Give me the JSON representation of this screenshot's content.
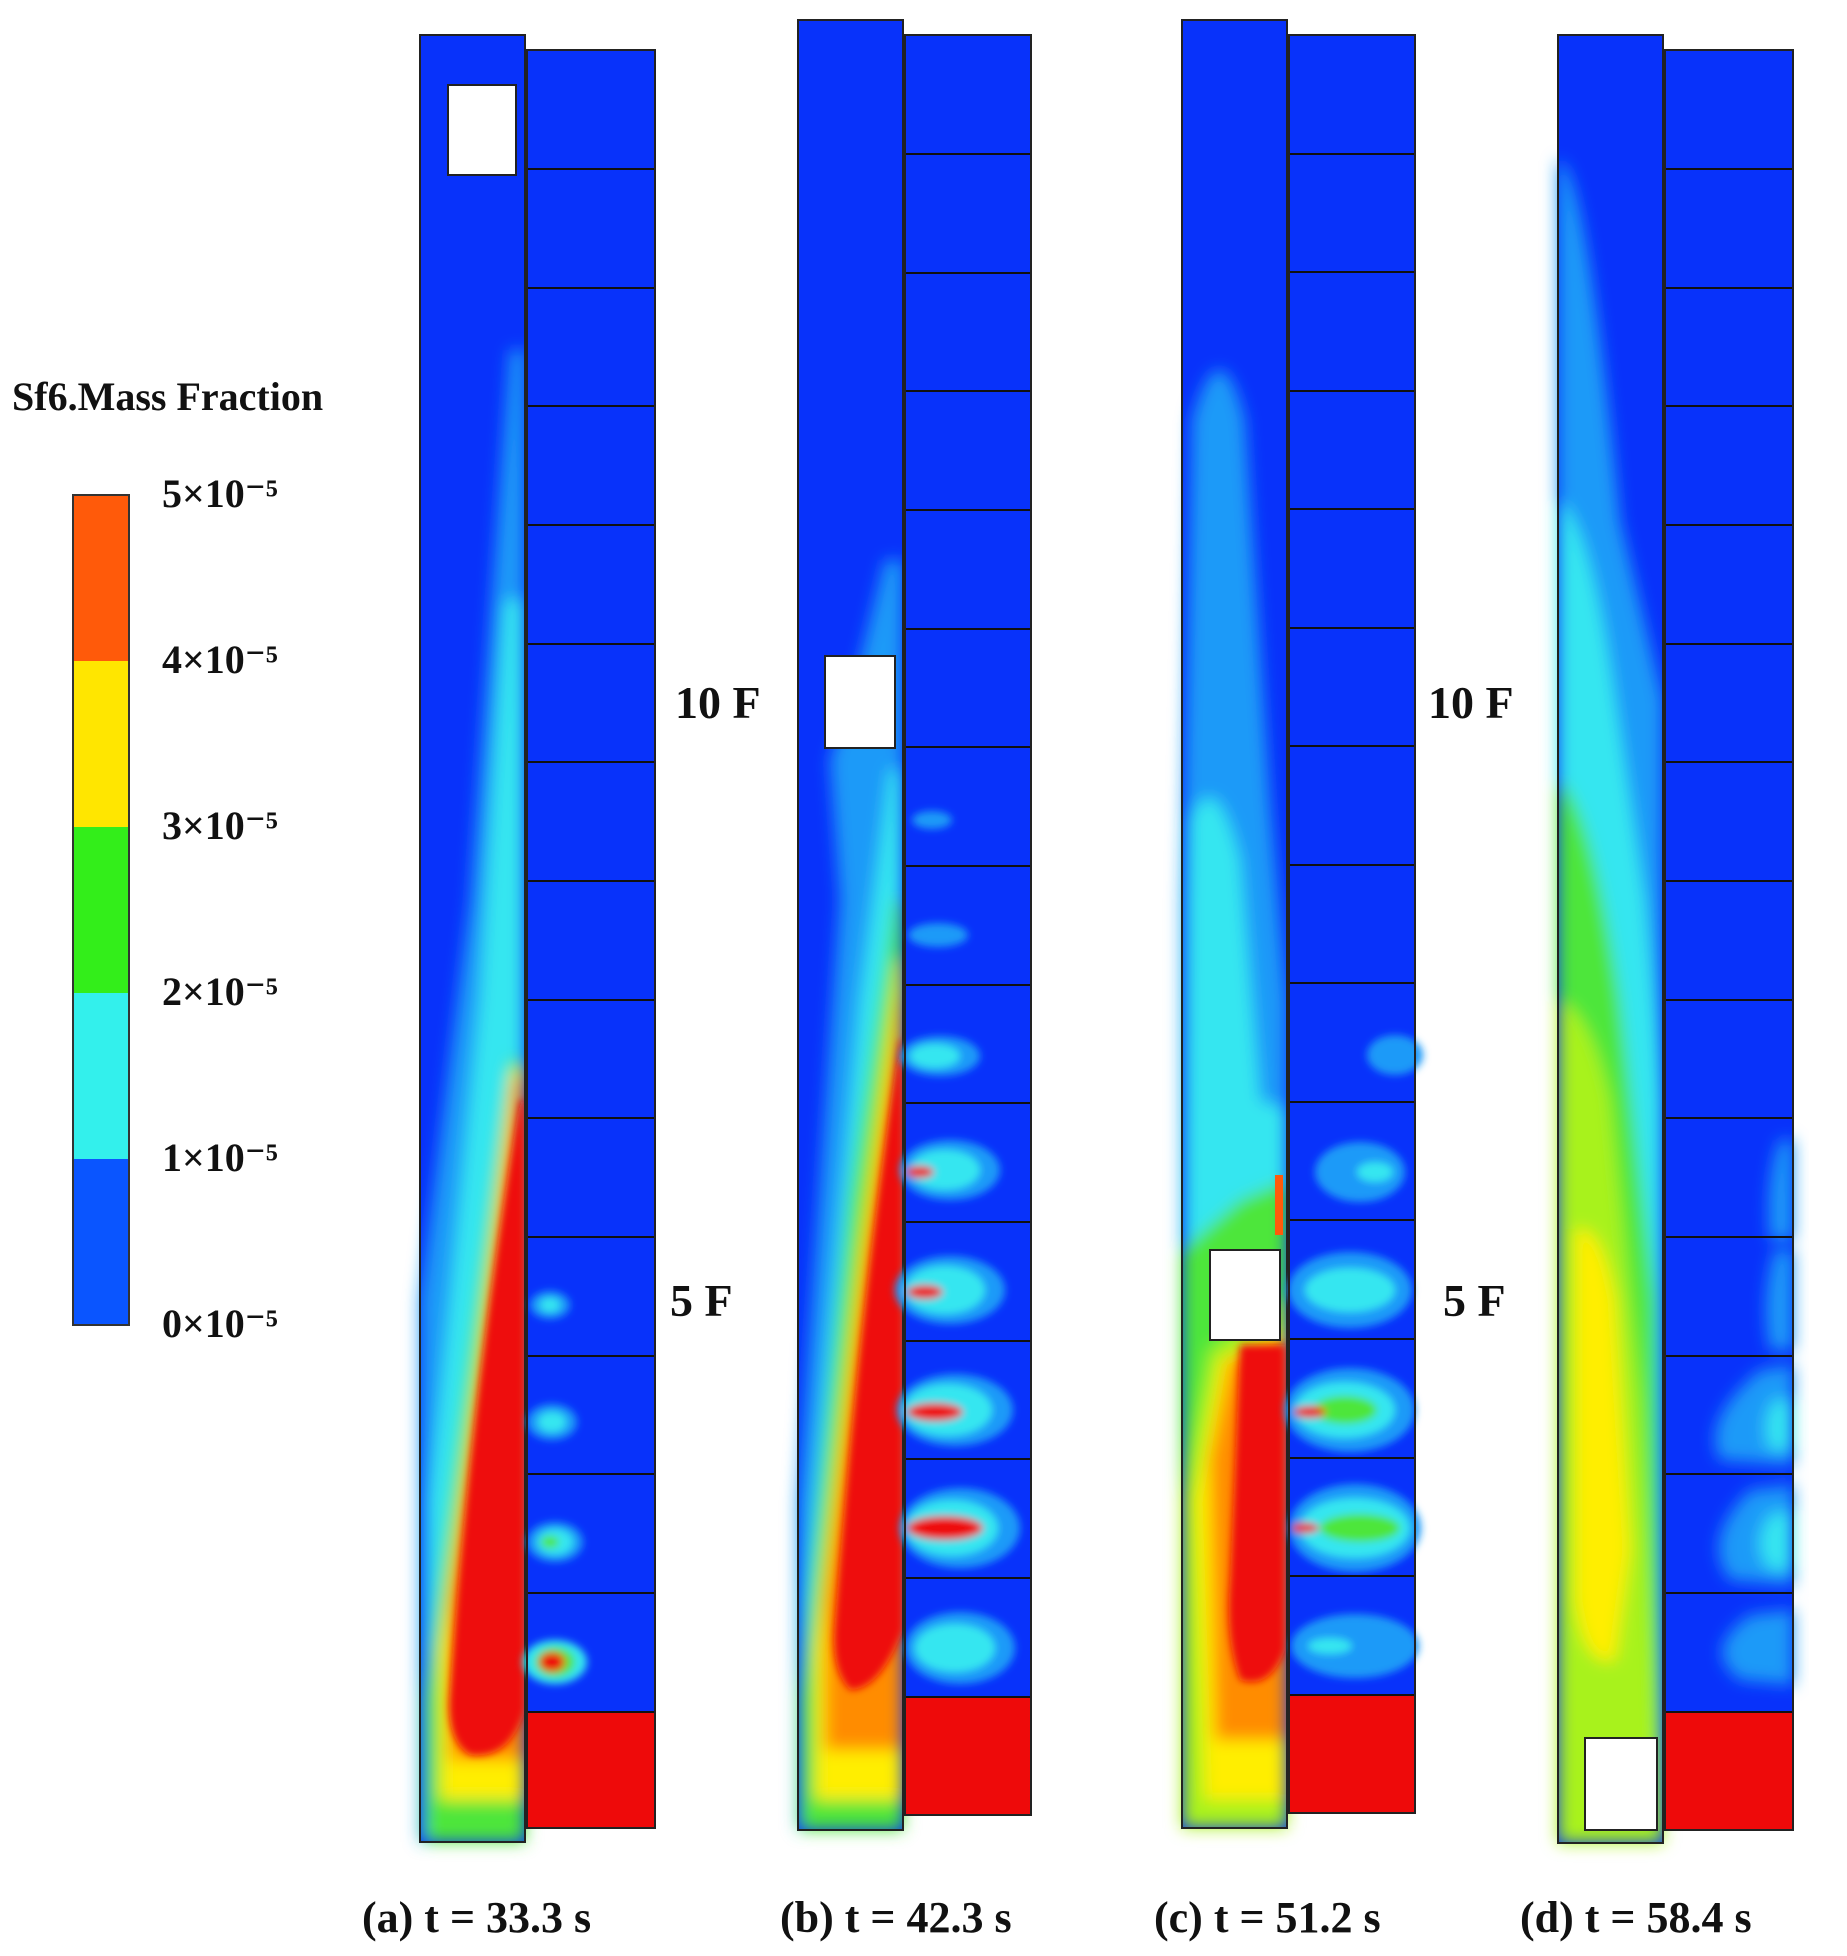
{
  "colorbar": {
    "title": "Sf6.Mass Fraction",
    "labels": [
      "5×10⁻⁵",
      "4×10⁻⁵",
      "3×10⁻⁵",
      "2×10⁻⁵",
      "1×10⁻⁵",
      "0×10⁻⁵"
    ],
    "levels": [
      5e-05,
      4e-05,
      3e-05,
      2e-05,
      1e-05,
      0
    ],
    "colors": [
      "#ff5a0a",
      "#ffe600",
      "#33ee1a",
      "#33f0ec",
      "#0a55ff"
    ]
  },
  "palette": {
    "background_blue": "#0832fa",
    "light_blue": "#1a9af8",
    "cyan": "#35e6f0",
    "green": "#4ee63a",
    "yellow_green": "#a8f21c",
    "yellow": "#ffee00",
    "orange": "#ff8c00",
    "red": "#ee0a0a"
  },
  "floor_labels": {
    "ten": "10 F",
    "five": "5 F"
  },
  "panels": [
    {
      "caption": "(a) t = 33.3 s",
      "time_s": 33.3
    },
    {
      "caption": "(b) t = 42.3 s",
      "time_s": 42.3
    },
    {
      "caption": "(c) t = 51.2 s",
      "time_s": 51.2
    },
    {
      "caption": "(d) t = 58.4 s",
      "time_s": 58.4
    }
  ]
}
